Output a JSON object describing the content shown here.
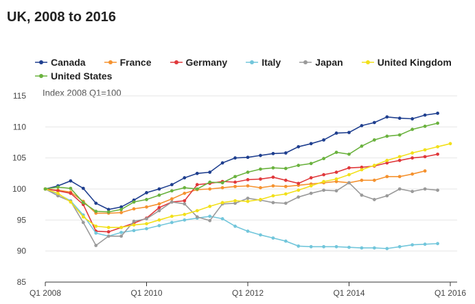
{
  "title": "UK, 2008 to 2016",
  "chart_data": {
    "type": "line",
    "title": "UK, 2008 to 2016",
    "ylabel": "Index 2008 Q1=100",
    "xlabel": "",
    "ylim": [
      85,
      115
    ],
    "yticks": [
      85,
      90,
      95,
      100,
      105,
      110,
      115
    ],
    "x_quarters": 33,
    "x_labels": [
      {
        "index": 0,
        "label": "Q1 2008"
      },
      {
        "index": 8,
        "label": "Q1 2010"
      },
      {
        "index": 16,
        "label": "Q1 2012"
      },
      {
        "index": 24,
        "label": "Q1 2014"
      },
      {
        "index": 32,
        "label": "Q1 2016"
      }
    ],
    "grid": true,
    "legend_position": "top",
    "series": [
      {
        "name": "Canada",
        "color": "#1f3f8f",
        "values": [
          100,
          100.5,
          101.3,
          100.1,
          97.7,
          96.7,
          97.1,
          98.2,
          99.4,
          100.0,
          100.7,
          101.8,
          102.5,
          102.7,
          104.2,
          105.0,
          105.1,
          105.4,
          105.7,
          105.8,
          106.8,
          107.3,
          107.9,
          109.0,
          109.1,
          110.2,
          110.7,
          111.6,
          111.4,
          111.3,
          111.9,
          112.2
        ]
      },
      {
        "name": "France",
        "color": "#f5922f",
        "values": [
          100,
          99.8,
          99.5,
          98.0,
          96.1,
          96.1,
          96.2,
          96.8,
          97.1,
          97.6,
          98.4,
          99.3,
          99.9,
          100.0,
          100.2,
          100.4,
          100.5,
          100.2,
          100.5,
          100.4,
          100.6,
          100.8,
          101.0,
          101.2,
          101.0,
          101.4,
          101.4,
          102.0,
          102.0,
          102.4,
          102.9
        ]
      },
      {
        "name": "Germany",
        "color": "#e0383b",
        "values": [
          100,
          99.7,
          99.3,
          97.5,
          93.2,
          93.1,
          93.8,
          94.5,
          95.3,
          97.0,
          97.9,
          98.1,
          100.7,
          100.9,
          101.2,
          101.1,
          101.5,
          101.6,
          101.9,
          101.4,
          100.9,
          101.8,
          102.3,
          102.7,
          103.4,
          103.5,
          103.7,
          104.2,
          104.6,
          105.0,
          105.2,
          105.6
        ]
      },
      {
        "name": "Italy",
        "color": "#72c6db",
        "values": [
          100,
          99.2,
          98.1,
          95.8,
          92.9,
          92.4,
          93.0,
          93.3,
          93.6,
          94.1,
          94.6,
          95.0,
          95.3,
          95.6,
          95.2,
          94.0,
          93.2,
          92.6,
          92.1,
          91.6,
          90.8,
          90.7,
          90.7,
          90.7,
          90.6,
          90.5,
          90.5,
          90.4,
          90.7,
          91.0,
          91.1,
          91.2
        ]
      },
      {
        "name": "Japan",
        "color": "#9a9a9a",
        "values": [
          100,
          98.9,
          98.0,
          94.6,
          90.9,
          92.4,
          92.4,
          94.8,
          95.2,
          96.5,
          97.9,
          97.6,
          95.5,
          94.9,
          97.6,
          97.7,
          98.5,
          98.2,
          97.8,
          97.7,
          98.7,
          99.3,
          99.8,
          99.7,
          101.0,
          99.0,
          98.3,
          98.9,
          100.0,
          99.6,
          100.0,
          99.8
        ]
      },
      {
        "name": "United Kingdom",
        "color": "#f2e01a",
        "values": [
          100,
          99.3,
          97.9,
          95.5,
          94.0,
          93.8,
          93.8,
          94.2,
          94.4,
          95.0,
          95.6,
          95.9,
          96.5,
          97.2,
          97.8,
          98.1,
          98.0,
          98.3,
          98.9,
          99.2,
          99.8,
          100.5,
          101.2,
          101.6,
          102.3,
          103.1,
          103.8,
          104.6,
          105.2,
          105.8,
          106.3,
          106.8,
          107.3
        ]
      },
      {
        "name": "United States",
        "color": "#6ab23e",
        "values": [
          100,
          100.3,
          100.1,
          97.8,
          96.4,
          96.3,
          96.7,
          97.9,
          98.3,
          99.0,
          99.7,
          100.2,
          100.0,
          101.1,
          101.0,
          102.0,
          102.7,
          103.2,
          103.4,
          103.3,
          103.8,
          104.1,
          104.9,
          105.9,
          105.6,
          106.9,
          107.9,
          108.5,
          108.7,
          109.6,
          110.1,
          110.6
        ]
      }
    ]
  }
}
